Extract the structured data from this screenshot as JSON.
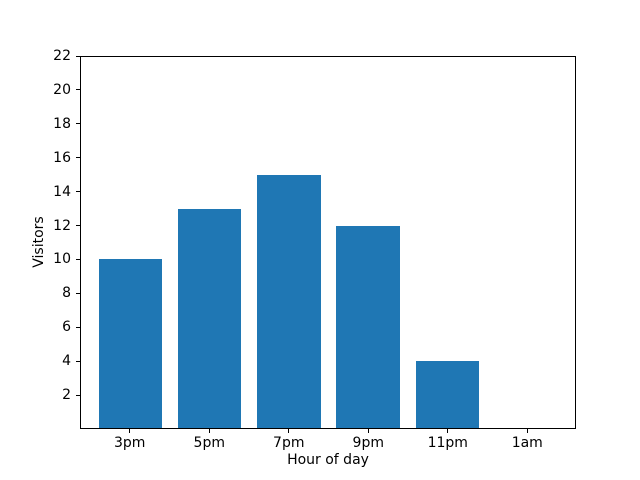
{
  "chart_data": {
    "type": "bar",
    "categories": [
      "3pm",
      "5pm",
      "7pm",
      "9pm",
      "11pm",
      "1am"
    ],
    "values": [
      10,
      13,
      15,
      12,
      4,
      0
    ],
    "title": "",
    "xlabel": "Hour of day",
    "ylabel": "Visitors",
    "ylim": [
      0,
      22
    ],
    "yticks": [
      2,
      4,
      6,
      8,
      10,
      12,
      14,
      16,
      18,
      20,
      22
    ],
    "grid": false,
    "legend": false,
    "bar_color": "#1f77b4",
    "background_color": "#ffffff",
    "axis_color": "#000000"
  }
}
